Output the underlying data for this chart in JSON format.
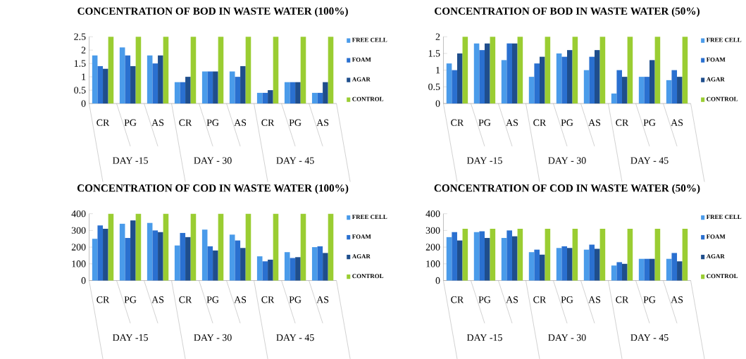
{
  "chart_data": [
    {
      "type": "bar",
      "title": "CONCENTRATION OF BOD IN WASTE WATER (100%)",
      "categories": [
        "CR",
        "PG",
        "AS",
        "CR",
        "PG",
        "AS",
        "CR",
        "PG",
        "AS"
      ],
      "series": [
        {
          "name": "FREE CELL",
          "color": "#4a9bea",
          "values": [
            1.8,
            2.1,
            1.8,
            0.8,
            1.2,
            1.2,
            0.4,
            0.8,
            0.4
          ]
        },
        {
          "name": "FOAM",
          "color": "#2a70d0",
          "values": [
            1.4,
            1.8,
            1.5,
            0.8,
            1.2,
            1.0,
            0.4,
            0.8,
            0.4
          ]
        },
        {
          "name": "AGAR",
          "color": "#1f4e8c",
          "values": [
            1.3,
            1.4,
            1.8,
            1.0,
            1.2,
            1.4,
            0.5,
            0.8,
            0.8
          ]
        },
        {
          "name": "CONTROL",
          "color": "#9acd32",
          "values": [
            2.5,
            2.5,
            2.5,
            2.5,
            2.5,
            2.5,
            2.5,
            2.5,
            2.5
          ]
        }
      ],
      "ylim": [
        0,
        2.5
      ],
      "yticks": [
        0,
        0.5,
        1,
        1.5,
        2,
        2.5
      ],
      "legend": "right",
      "annotations": [
        "DAY -15",
        "DAY - 30",
        "DAY - 45"
      ]
    },
    {
      "type": "bar",
      "title": "CONCENTRATION OF BOD IN WASTE WATER (50%)",
      "categories": [
        "CR",
        "PG",
        "AS",
        "CR",
        "PG",
        "AS",
        "CR",
        "PG",
        "AS"
      ],
      "series": [
        {
          "name": "FREE CELL",
          "color": "#4a9bea",
          "values": [
            1.2,
            1.8,
            1.3,
            0.8,
            1.5,
            1.0,
            0.3,
            0.8,
            0.7
          ]
        },
        {
          "name": "FOAM",
          "color": "#2a70d0",
          "values": [
            1.0,
            1.6,
            1.8,
            1.2,
            1.4,
            1.4,
            1.0,
            0.8,
            1.0
          ]
        },
        {
          "name": "AGAR",
          "color": "#1f4e8c",
          "values": [
            1.5,
            1.8,
            1.8,
            1.4,
            1.6,
            1.6,
            0.8,
            1.3,
            0.8
          ]
        },
        {
          "name": "CONTROL",
          "color": "#9acd32",
          "values": [
            2,
            2,
            2,
            2,
            2,
            2,
            2,
            2,
            2
          ]
        }
      ],
      "ylim": [
        0,
        2
      ],
      "yticks": [
        0,
        0.5,
        1,
        1.5,
        2
      ],
      "legend": "right",
      "annotations": [
        "DAY -15",
        "DAY - 30",
        "DAY - 45"
      ]
    },
    {
      "type": "bar",
      "title": "CONCENTRATION OF COD IN WASTE WATER (100%)",
      "categories": [
        "CR",
        "PG",
        "AS",
        "CR",
        "PG",
        "AS",
        "CR",
        "PG",
        "AS"
      ],
      "series": [
        {
          "name": "FREE CELL",
          "color": "#4a9bea",
          "values": [
            250,
            340,
            345,
            210,
            305,
            275,
            145,
            170,
            200
          ]
        },
        {
          "name": "FOAM",
          "color": "#2a70d0",
          "values": [
            330,
            255,
            300,
            285,
            205,
            240,
            115,
            135,
            205
          ]
        },
        {
          "name": "AGAR",
          "color": "#1f4e8c",
          "values": [
            310,
            360,
            290,
            260,
            180,
            195,
            125,
            140,
            165
          ]
        },
        {
          "name": "CONTROL",
          "color": "#9acd32",
          "values": [
            400,
            400,
            400,
            400,
            400,
            400,
            400,
            400,
            400
          ]
        }
      ],
      "ylim": [
        0,
        400
      ],
      "yticks": [
        0,
        100,
        200,
        300,
        400
      ],
      "legend": "right",
      "annotations": [
        "DAY -15",
        "DAY - 30",
        "DAY - 45"
      ]
    },
    {
      "type": "bar",
      "title": "CONCENTRATION OF COD IN WASTE WATER (50%)",
      "categories": [
        "CR",
        "PG",
        "AS",
        "CR",
        "PG",
        "AS",
        "CR",
        "PG",
        "AS"
      ],
      "series": [
        {
          "name": "FREE CELL",
          "color": "#4a9bea",
          "values": [
            260,
            290,
            255,
            170,
            195,
            185,
            90,
            130,
            130
          ]
        },
        {
          "name": "FOAM",
          "color": "#2a70d0",
          "values": [
            290,
            295,
            300,
            185,
            205,
            215,
            110,
            130,
            165
          ]
        },
        {
          "name": "AGAR",
          "color": "#1f4e8c",
          "values": [
            240,
            255,
            265,
            155,
            195,
            190,
            100,
            130,
            115
          ]
        },
        {
          "name": "CONTROL",
          "color": "#9acd32",
          "values": [
            310,
            310,
            310,
            310,
            310,
            310,
            310,
            310,
            310
          ]
        }
      ],
      "ylim": [
        0,
        400
      ],
      "yticks": [
        0,
        100,
        200,
        300,
        400
      ],
      "legend": "right",
      "annotations": [
        "DAY -15",
        "DAY - 30",
        "DAY - 45"
      ]
    }
  ]
}
